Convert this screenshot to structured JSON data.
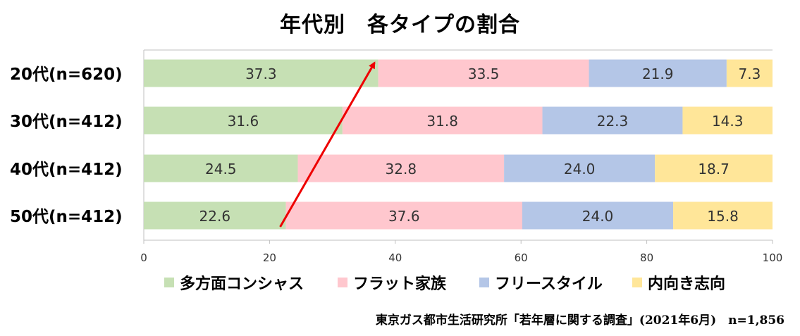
{
  "chart_data": {
    "type": "bar",
    "orientation": "horizontal",
    "stacked": true,
    "title": "年代別　各タイプの割合",
    "categories": [
      "20代(n=620)",
      "30代(n=412)",
      "40代(n=412)",
      "50代(n=412)"
    ],
    "series": [
      {
        "name": "多方面コンシャス",
        "color": "#c6e0b4",
        "values": [
          37.3,
          31.6,
          24.5,
          22.6
        ]
      },
      {
        "name": "フラット家族",
        "color": "#ffc7ce",
        "values": [
          33.5,
          31.8,
          32.8,
          37.6
        ]
      },
      {
        "name": "フリースタイル",
        "color": "#b4c6e7",
        "values": [
          21.9,
          22.3,
          24.0,
          24.0
        ]
      },
      {
        "name": "内向き志向",
        "color": "#ffe699",
        "values": [
          7.3,
          14.3,
          18.7,
          15.8
        ]
      }
    ],
    "xlim": [
      0,
      100
    ],
    "xticks": [
      0,
      20,
      40,
      60,
      80,
      100
    ],
    "grid": false,
    "legend_position": "bottom",
    "annotation": {
      "type": "arrow",
      "color": "#ee0000",
      "from": {
        "category": "50代(n=412)",
        "value": 21.7
      },
      "to": {
        "category": "20代(n=620)",
        "value": 36.7
      }
    }
  },
  "source_note": "東京ガス都市生活研究所「若年層に関する調査」(2021年6月)　n=1,856"
}
